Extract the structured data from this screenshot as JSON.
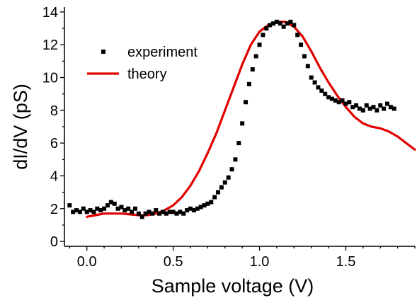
{
  "chart_data": {
    "type": "scatter",
    "title": "",
    "xlabel": "Sample voltage (V)",
    "ylabel": "dI/dV (pS)",
    "xlim": [
      -0.13,
      1.9
    ],
    "ylim": [
      -0.3,
      14.3
    ],
    "xticks": [
      0.0,
      0.5,
      1.0,
      1.5
    ],
    "xtick_labels": [
      "0.0",
      "0.5",
      "1.0",
      "1.5"
    ],
    "yticks": [
      0,
      2,
      4,
      6,
      8,
      10,
      12,
      14
    ],
    "ytick_labels": [
      "0",
      "2",
      "4",
      "6",
      "8",
      "10",
      "12",
      "14"
    ],
    "grid": false,
    "legend": {
      "position": "top-left"
    },
    "series": [
      {
        "name": "experiment",
        "kind": "markers",
        "marker": "square",
        "color": "#000000",
        "x": [
          -0.1,
          -0.08,
          -0.06,
          -0.04,
          -0.02,
          0.0,
          0.02,
          0.04,
          0.06,
          0.08,
          0.1,
          0.12,
          0.14,
          0.16,
          0.18,
          0.2,
          0.22,
          0.24,
          0.26,
          0.28,
          0.3,
          0.32,
          0.34,
          0.36,
          0.38,
          0.4,
          0.42,
          0.44,
          0.46,
          0.48,
          0.5,
          0.52,
          0.54,
          0.56,
          0.58,
          0.6,
          0.62,
          0.64,
          0.66,
          0.68,
          0.7,
          0.72,
          0.74,
          0.76,
          0.78,
          0.8,
          0.82,
          0.84,
          0.86,
          0.88,
          0.9,
          0.92,
          0.94,
          0.96,
          0.98,
          1.0,
          1.02,
          1.04,
          1.06,
          1.08,
          1.1,
          1.12,
          1.14,
          1.16,
          1.18,
          1.2,
          1.22,
          1.24,
          1.26,
          1.28,
          1.3,
          1.32,
          1.34,
          1.36,
          1.38,
          1.4,
          1.42,
          1.44,
          1.46,
          1.48,
          1.5,
          1.52,
          1.54,
          1.56,
          1.58,
          1.6,
          1.62,
          1.64,
          1.66,
          1.68,
          1.7,
          1.72,
          1.74,
          1.76,
          1.78
        ],
        "y": [
          2.2,
          1.8,
          1.9,
          1.8,
          2.0,
          1.8,
          1.9,
          1.8,
          2.0,
          1.9,
          2.0,
          2.2,
          2.4,
          2.3,
          2.0,
          2.1,
          1.9,
          2.0,
          1.8,
          2.0,
          1.7,
          1.5,
          1.7,
          1.8,
          1.7,
          1.9,
          1.7,
          1.8,
          1.7,
          1.8,
          1.8,
          1.7,
          1.8,
          1.7,
          1.9,
          2.0,
          1.9,
          2.0,
          2.1,
          2.2,
          2.3,
          2.4,
          2.7,
          3.0,
          3.3,
          3.6,
          3.9,
          4.4,
          5.0,
          6.0,
          7.2,
          8.5,
          9.6,
          10.5,
          11.3,
          12.0,
          12.6,
          13.0,
          13.2,
          13.3,
          13.4,
          13.3,
          13.1,
          13.3,
          13.4,
          13.2,
          12.6,
          12.0,
          11.3,
          10.7,
          10.0,
          9.7,
          9.4,
          9.2,
          9.0,
          8.8,
          8.7,
          8.6,
          8.5,
          8.6,
          8.4,
          8.5,
          8.2,
          8.3,
          8.1,
          8.0,
          8.3,
          8.1,
          8.2,
          8.0,
          8.3,
          8.1,
          8.4,
          8.2,
          8.1
        ]
      },
      {
        "name": "theory",
        "kind": "line",
        "color": "#e00000",
        "x": [
          0.0,
          0.05,
          0.1,
          0.15,
          0.2,
          0.25,
          0.3,
          0.35,
          0.4,
          0.45,
          0.5,
          0.55,
          0.6,
          0.65,
          0.7,
          0.75,
          0.8,
          0.85,
          0.9,
          0.95,
          1.0,
          1.05,
          1.1,
          1.15,
          1.2,
          1.25,
          1.3,
          1.35,
          1.4,
          1.45,
          1.5,
          1.55,
          1.6,
          1.65,
          1.7,
          1.75,
          1.8,
          1.85,
          1.9
        ],
        "y": [
          1.5,
          1.6,
          1.7,
          1.7,
          1.7,
          1.65,
          1.6,
          1.6,
          1.7,
          1.9,
          2.2,
          2.7,
          3.4,
          4.3,
          5.4,
          6.6,
          8.0,
          9.4,
          10.8,
          12.0,
          12.8,
          13.2,
          13.4,
          13.4,
          13.1,
          12.5,
          11.6,
          10.6,
          9.7,
          8.9,
          8.2,
          7.6,
          7.2,
          7.0,
          6.9,
          6.7,
          6.4,
          6.0,
          5.6
        ]
      }
    ]
  }
}
